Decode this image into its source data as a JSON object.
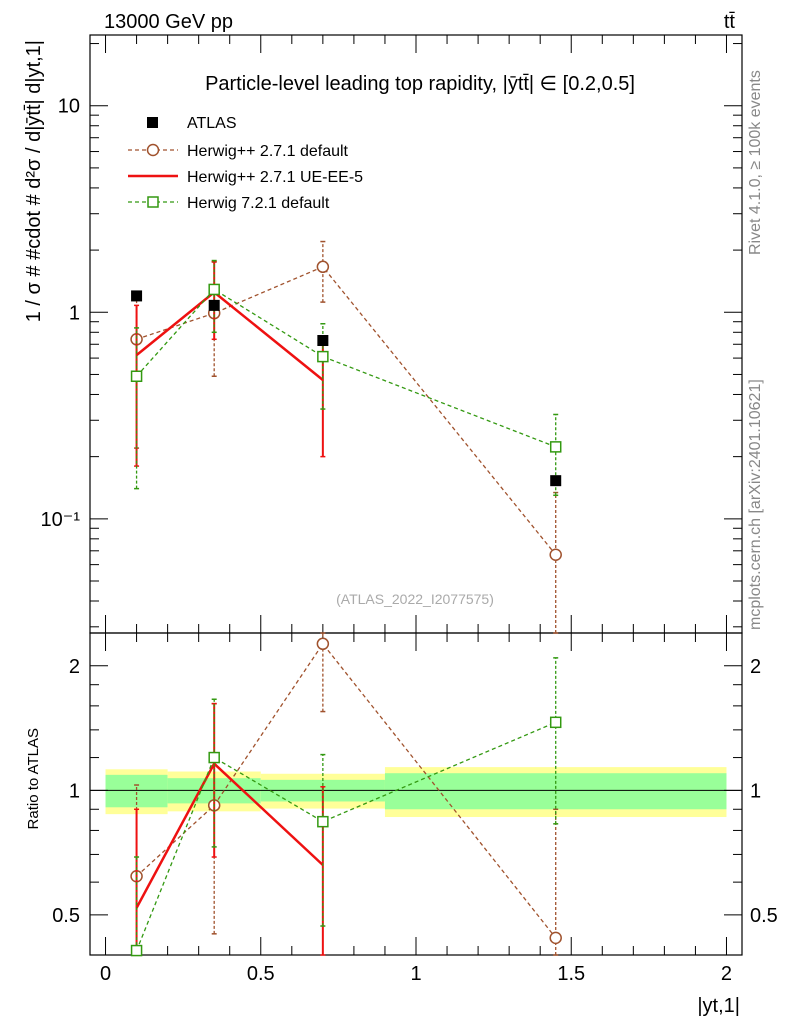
{
  "header": {
    "left": "13000 GeV pp",
    "right": "tt̄"
  },
  "side_texts": {
    "rivet": "Rivet 4.1.0, ≥ 100k events",
    "mcplots": "mcplots.cern.ch [arXiv:2401.10621]"
  },
  "main_plot": {
    "title": "Particle-level leading top rapidity, |ȳtt̄| ∈ [0.2,0.5]",
    "ylabel": "1 / σ # #cdot # d²σ / d|ȳtt̄| d|yt,1|",
    "watermark": "(ATLAS_2022_I2077575)",
    "yticks": [
      "10⁻¹",
      "1",
      "10"
    ]
  },
  "ratio_plot": {
    "ylabel": "Ratio to ATLAS",
    "yticks": [
      "0.5",
      "1",
      "2"
    ]
  },
  "xaxis": {
    "label": "|yt,1|",
    "ticks": [
      "0",
      "0.5",
      "1",
      "1.5",
      "2"
    ]
  },
  "colors": {
    "atlas": "#000000",
    "herwig_default": "#a0522d",
    "herwig_ue": "#ee1111",
    "herwig72": "#339911",
    "band_inner": "#99ff99",
    "band_outer": "#ffff99"
  },
  "chart_data": {
    "type": "line",
    "title": "Particle-level leading top rapidity, |ȳtt̄| ∈ [0.2,0.5]",
    "xlabel": "|yt,1|",
    "ylabel": "1 / σ d²σ / d|ȳtt̄| d|yt,1|",
    "xlim": [
      -0.05,
      2.05
    ],
    "ylim": [
      0.028,
      22
    ],
    "yscale": "log",
    "ratio_ylim": [
      0.4,
      2.4
    ],
    "bins": [
      [
        0,
        0.2
      ],
      [
        0.2,
        0.5
      ],
      [
        0.5,
        0.9
      ],
      [
        0.9,
        2.0
      ]
    ],
    "series": [
      {
        "name": "ATLAS",
        "style": "data",
        "x": [
          0.1,
          0.35,
          0.7,
          1.45
        ],
        "y": [
          1.2,
          1.08,
          0.73,
          0.153
        ],
        "ratio": [
          1.0,
          1.0,
          1.0,
          1.0
        ],
        "ratio_stat": [
          0.09,
          0.07,
          0.06,
          0.1
        ],
        "ratio_total": [
          0.18,
          0.16,
          0.14,
          0.2
        ]
      },
      {
        "name": "Herwig++ 2.7.1 default",
        "style": "dashed-circle",
        "x": [
          0.1,
          0.35,
          0.7,
          1.45
        ],
        "y": [
          0.74,
          0.99,
          1.66,
          0.067
        ],
        "y_lo": [
          0.22,
          0.49,
          1.12,
          0.0005
        ],
        "y_hi": [
          1.26,
          1.75,
          2.2,
          0.134
        ],
        "ratio": [
          0.62,
          0.92,
          2.26,
          0.44
        ],
        "ratio_lo": [
          0.4,
          0.45,
          1.55,
          0.38
        ],
        "ratio_hi": [
          1.03,
          1.62,
          2.4,
          0.9
        ]
      },
      {
        "name": "Herwig++ 2.7.1 UE-EE-5",
        "style": "solid",
        "x": [
          0.1,
          0.35,
          0.7
        ],
        "y": [
          0.62,
          1.25,
          0.47
        ],
        "y_lo": [
          0.18,
          0.74,
          0.2
        ],
        "y_hi": [
          1.08,
          1.76,
          0.74
        ],
        "ratio": [
          0.52,
          1.16,
          0.66
        ],
        "ratio_lo": [
          0.4,
          0.69,
          0.4
        ],
        "ratio_hi": [
          0.9,
          1.62,
          1.02
        ]
      },
      {
        "name": "Herwig 7.2.1 default",
        "style": "dashed-square",
        "x": [
          0.1,
          0.35,
          0.7,
          1.45
        ],
        "y": [
          0.49,
          1.29,
          0.61,
          0.223
        ],
        "y_lo": [
          0.14,
          0.8,
          0.34,
          0.13
        ],
        "y_hi": [
          0.84,
          1.78,
          0.88,
          0.32
        ],
        "ratio": [
          0.41,
          1.2,
          0.84,
          1.46
        ],
        "ratio_lo": [
          0.4,
          0.73,
          0.47,
          0.83
        ],
        "ratio_hi": [
          0.69,
          1.66,
          1.22,
          2.09
        ]
      }
    ]
  }
}
